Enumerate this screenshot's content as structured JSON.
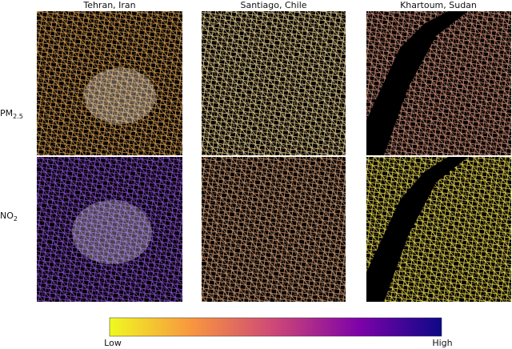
{
  "figure": {
    "columns": [
      "Tehran, Iran",
      "Santiago, Chile",
      "Khartoum, Sudan"
    ],
    "rows": [
      {
        "label": "PM",
        "subscript": "2.5"
      },
      {
        "label": "NO",
        "subscript": "2"
      }
    ],
    "colorbar": {
      "low": "Low",
      "high": "High"
    }
  }
}
